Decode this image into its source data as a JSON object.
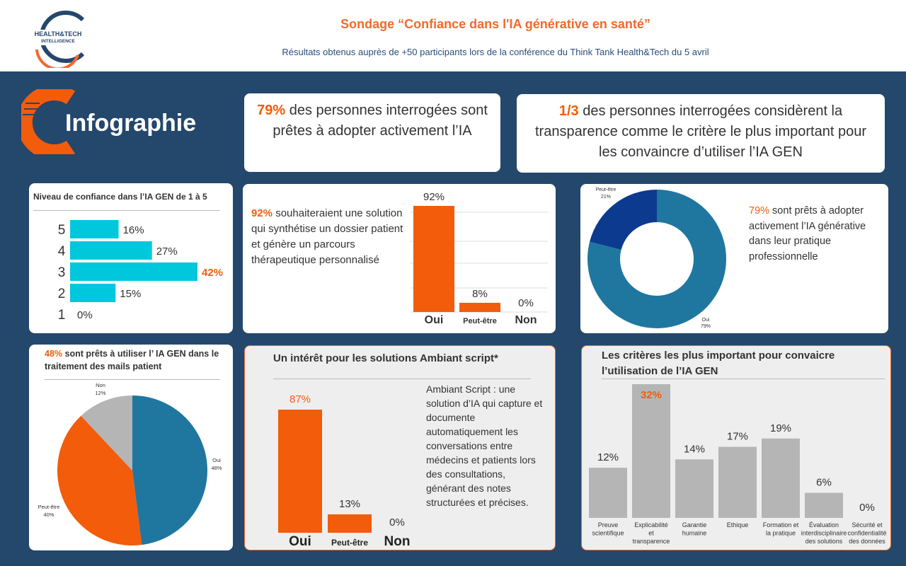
{
  "header": {
    "logo_line1": "HEALTH&TECH",
    "logo_line2": "INTELLIGENCE",
    "title": "Sondage “Confiance dans l'IA générative en santé”",
    "subtitle": "Résultats obtenus auprès de +50 participants lors de la conférence  du Think Tank Health&Tech du 5 avril"
  },
  "infographie_label": "Infographie",
  "colors": {
    "orange": "#f25c0a",
    "navy": "#24476c",
    "cyan": "#00c8dc",
    "blue": "#1f77a0",
    "darkblue": "#0b3a8f",
    "grey": "#b5b5b5"
  },
  "kpi1": {
    "highlight": "79%",
    "text": " des personnes interrogées sont prêtes à adopter activement l’IA"
  },
  "kpi2": {
    "highlight": "1/3",
    "text": " des personnes interrogées considèrent la transparence comme le critère le plus important pour les convaincre d’utiliser l’IA GEN"
  },
  "q92": {
    "highlight": "92%",
    "text": " souhaiteraient une solution qui synthétise un dossier patient et génère un parcours thérapeutique personnalisé"
  },
  "q79": {
    "highlight": "79%",
    "text": " sont prêts à adopter activement l’IA générative dans leur pratique professionnelle"
  },
  "q48": {
    "highlight": "48%",
    "text": " sont prêts à utiliser l’ IA GEN dans le traitement des mails patient"
  },
  "ambiant": {
    "title": "Un intérêt pour les solutions Ambiant script*",
    "description": "Ambiant Script : une solution d’IA qui capture et documente automatiquement les conversations entre médecins et patients lors des consultations, générant des notes structurées et précises."
  },
  "chart_data": [
    {
      "type": "bar",
      "orientation": "horizontal",
      "title": "Niveau de confiance dans l’IA GEN de 1 à 5",
      "categories": [
        "5",
        "4",
        "3",
        "2",
        "1"
      ],
      "values": [
        16,
        27,
        42,
        15,
        0
      ],
      "labels": [
        "16%",
        "27%",
        "42%",
        "15%",
        "0%"
      ],
      "highlight_index": 2,
      "xlim": [
        0,
        42
      ]
    },
    {
      "type": "bar",
      "categories": [
        "Oui",
        "Peut-être",
        "Non"
      ],
      "values": [
        92,
        8,
        0
      ],
      "labels": [
        "92%",
        "8%",
        "0%"
      ],
      "ylim": [
        0,
        92
      ]
    },
    {
      "type": "pie",
      "donut": true,
      "categories": [
        "Oui",
        "Peut-être"
      ],
      "values": [
        79,
        21
      ],
      "labels": [
        "79%",
        "21%"
      ]
    },
    {
      "type": "pie",
      "categories": [
        "Oui",
        "Peut-être",
        "Non"
      ],
      "values": [
        48,
        40,
        12
      ],
      "labels": [
        "48%",
        "40%",
        "12%"
      ]
    },
    {
      "type": "bar",
      "title": "Un intérêt pour les solutions Ambiant script*",
      "categories": [
        "Oui",
        "Peut-être",
        "Non"
      ],
      "values": [
        87,
        13,
        0
      ],
      "labels": [
        "87%",
        "13%",
        "0%"
      ],
      "ylim": [
        0,
        87
      ]
    },
    {
      "type": "bar",
      "title": "Les critères les plus important pour convaicre l’utilisation de l’IA GEN",
      "categories": [
        "Preuve scientifique",
        "Explicabilité et transparence",
        "Garantie humaine",
        "Ethique",
        "Formation et la pratique",
        "Évaluation interdisciplinaire des solutions",
        "Sécurité et confidentialité des données"
      ],
      "values": [
        12,
        32,
        14,
        17,
        19,
        6,
        0
      ],
      "labels": [
        "12%",
        "32%",
        "14%",
        "17%",
        "19%",
        "6%",
        "0%"
      ],
      "highlight_index": 1,
      "ylim": [
        0,
        32
      ]
    }
  ]
}
